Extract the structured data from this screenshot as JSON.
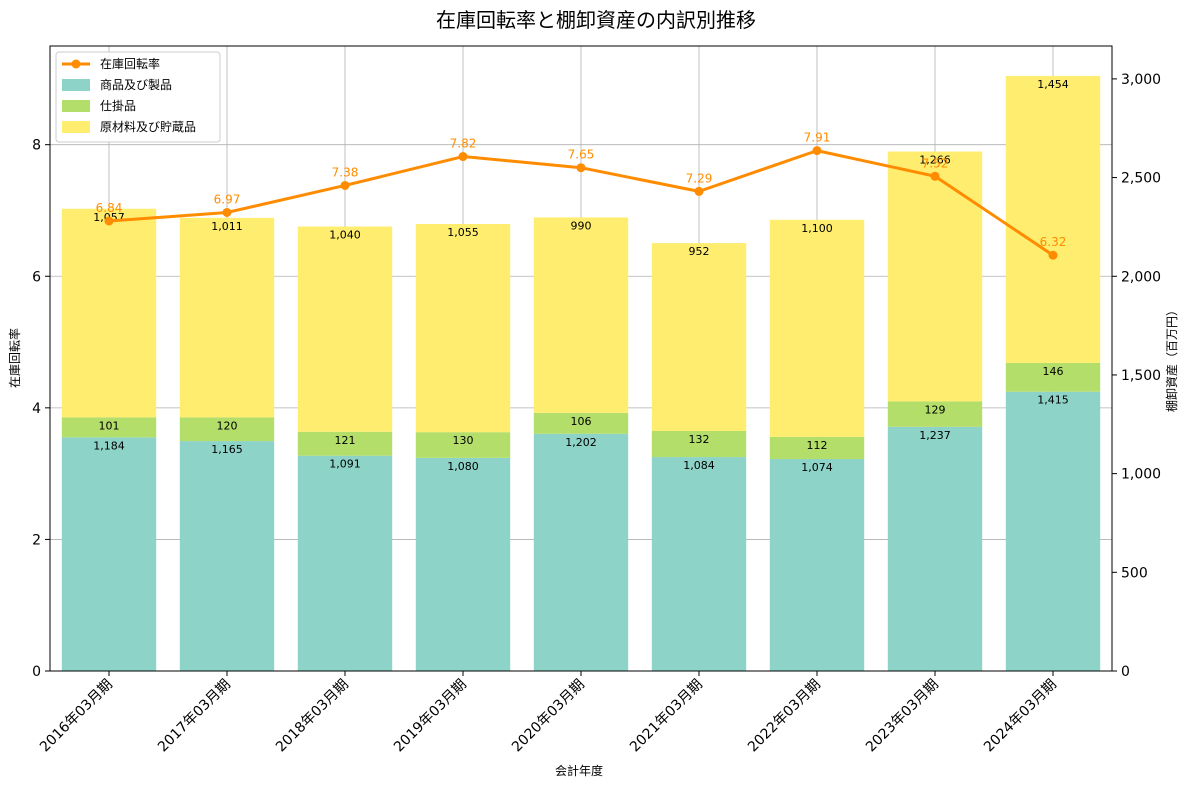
{
  "chart_data": {
    "type": "bar",
    "title": "在庫回転率と棚卸資産の内訳別推移",
    "xlabel": "会計年度",
    "ylabel_left": "在庫回転率",
    "ylabel_right": "棚卸資産（百万円）",
    "ylim_left": [
      0,
      9.5
    ],
    "ylim_right": [
      0,
      3166.67
    ],
    "yticks_left": [
      0,
      2,
      4,
      6,
      8
    ],
    "yticks_right": [
      0,
      500,
      1000,
      1500,
      2000,
      2500,
      3000
    ],
    "grid": true,
    "legend_position": "top-left",
    "categories": [
      "2016年03月期",
      "2017年03月期",
      "2018年03月期",
      "2019年03月期",
      "2020年03月期",
      "2021年03月期",
      "2022年03月期",
      "2023年03月期",
      "2024年03月期"
    ],
    "series": [
      {
        "name": "商品及び製品",
        "kind": "stacked-bar",
        "axis": "right",
        "color": "#8dd3c7",
        "values": [
          1184,
          1165,
          1091,
          1080,
          1202,
          1084,
          1074,
          1237,
          1415
        ]
      },
      {
        "name": "仕掛品",
        "kind": "stacked-bar",
        "axis": "right",
        "color": "#b3de69",
        "values": [
          101,
          120,
          121,
          130,
          106,
          132,
          112,
          129,
          146
        ]
      },
      {
        "name": "原材料及び貯蔵品",
        "kind": "stacked-bar",
        "axis": "right",
        "color": "#ffed6f",
        "values": [
          1057,
          1011,
          1040,
          1055,
          990,
          952,
          1100,
          1266,
          1454
        ]
      },
      {
        "name": "在庫回転率",
        "kind": "line",
        "axis": "left",
        "color": "#ff8c00",
        "values": [
          6.84,
          6.97,
          7.38,
          7.82,
          7.65,
          7.29,
          7.91,
          7.52,
          6.32
        ]
      }
    ]
  },
  "labels": {
    "rate": [
      "6.84",
      "6.97",
      "7.38",
      "7.82",
      "7.65",
      "7.29",
      "7.91",
      "7.52",
      "6.32"
    ],
    "stack": [
      [
        "1,184",
        "1,165",
        "1,091",
        "1,080",
        "1,202",
        "1,084",
        "1,074",
        "1,237",
        "1,415"
      ],
      [
        "101",
        "120",
        "121",
        "130",
        "106",
        "132",
        "112",
        "129",
        "146"
      ],
      [
        "1,057",
        "1,011",
        "1,040",
        "1,055",
        "990",
        "952",
        "1,100",
        "1,266",
        "1,454"
      ]
    ],
    "yticks_right": [
      "0",
      "500",
      "1,000",
      "1,500",
      "2,000",
      "2,500",
      "3,000"
    ]
  }
}
